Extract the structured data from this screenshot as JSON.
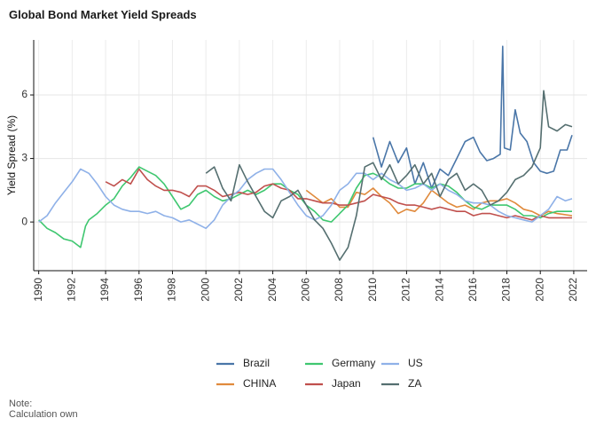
{
  "title": "Global Bond Market Yield Spreads",
  "caption": {
    "line1": "Note:",
    "line2": "Calculation own"
  },
  "chart_data": {
    "type": "line",
    "title": "Global Bond Market Yield Spreads",
    "xlabel": "",
    "ylabel": "Yield Spread (%)",
    "xlim": [
      1989.7,
      2022.8
    ],
    "ylim": [
      -2.3,
      8.6
    ],
    "xticks": [
      1990,
      1992,
      1994,
      1996,
      1998,
      2000,
      2002,
      2004,
      2006,
      2008,
      2010,
      2012,
      2014,
      2016,
      2018,
      2020,
      2022
    ],
    "yticks": [
      0,
      3,
      6
    ],
    "grid": true,
    "legend_position": "bottom",
    "series": [
      {
        "name": "Brazil",
        "color": "#4a76a8",
        "points": [
          [
            2010.0,
            4.0
          ],
          [
            2010.5,
            2.6
          ],
          [
            2011.0,
            3.8
          ],
          [
            2011.5,
            2.8
          ],
          [
            2012.0,
            3.5
          ],
          [
            2012.5,
            1.8
          ],
          [
            2013.0,
            2.8
          ],
          [
            2013.5,
            1.6
          ],
          [
            2014.0,
            2.5
          ],
          [
            2014.5,
            2.2
          ],
          [
            2015.0,
            3.0
          ],
          [
            2015.5,
            3.8
          ],
          [
            2016.0,
            4.0
          ],
          [
            2016.4,
            3.3
          ],
          [
            2016.8,
            2.9
          ],
          [
            2017.2,
            3.0
          ],
          [
            2017.6,
            3.2
          ],
          [
            2017.75,
            8.3
          ],
          [
            2017.85,
            3.5
          ],
          [
            2018.2,
            3.4
          ],
          [
            2018.5,
            5.3
          ],
          [
            2018.8,
            4.2
          ],
          [
            2019.2,
            3.8
          ],
          [
            2019.6,
            2.8
          ],
          [
            2020.0,
            2.4
          ],
          [
            2020.4,
            2.3
          ],
          [
            2020.8,
            2.4
          ],
          [
            2021.2,
            3.4
          ],
          [
            2021.6,
            3.4
          ],
          [
            2021.9,
            4.1
          ]
        ]
      },
      {
        "name": "CHINA",
        "color": "#e08a3c",
        "points": [
          [
            2006.0,
            1.5
          ],
          [
            2006.5,
            1.2
          ],
          [
            2007.0,
            0.9
          ],
          [
            2007.5,
            1.1
          ],
          [
            2008.0,
            0.7
          ],
          [
            2008.5,
            0.7
          ],
          [
            2009.0,
            1.4
          ],
          [
            2009.5,
            1.3
          ],
          [
            2010.0,
            1.6
          ],
          [
            2010.5,
            1.2
          ],
          [
            2011.0,
            0.9
          ],
          [
            2011.5,
            0.4
          ],
          [
            2012.0,
            0.6
          ],
          [
            2012.5,
            0.5
          ],
          [
            2013.0,
            0.9
          ],
          [
            2013.5,
            1.5
          ],
          [
            2014.0,
            1.2
          ],
          [
            2014.5,
            0.9
          ],
          [
            2015.0,
            0.7
          ],
          [
            2015.5,
            0.8
          ],
          [
            2016.0,
            0.6
          ],
          [
            2016.5,
            0.9
          ],
          [
            2017.0,
            1.0
          ],
          [
            2017.5,
            1.0
          ],
          [
            2018.0,
            1.1
          ],
          [
            2018.5,
            0.9
          ],
          [
            2019.0,
            0.6
          ],
          [
            2019.5,
            0.5
          ],
          [
            2020.0,
            0.3
          ],
          [
            2020.5,
            0.5
          ],
          [
            2021.0,
            0.4
          ],
          [
            2021.9,
            0.3
          ]
        ]
      },
      {
        "name": "Germany",
        "color": "#3fc770",
        "points": [
          [
            1990.0,
            0.1
          ],
          [
            1990.5,
            -0.3
          ],
          [
            1991.0,
            -0.5
          ],
          [
            1991.5,
            -0.8
          ],
          [
            1992.0,
            -0.9
          ],
          [
            1992.5,
            -1.2
          ],
          [
            1992.8,
            -0.2
          ],
          [
            1993.0,
            0.1
          ],
          [
            1993.5,
            0.4
          ],
          [
            1994.0,
            0.8
          ],
          [
            1994.5,
            1.1
          ],
          [
            1995.0,
            1.7
          ],
          [
            1995.5,
            2.1
          ],
          [
            1996.0,
            2.6
          ],
          [
            1996.5,
            2.4
          ],
          [
            1997.0,
            2.2
          ],
          [
            1997.5,
            1.8
          ],
          [
            1998.0,
            1.2
          ],
          [
            1998.5,
            0.6
          ],
          [
            1999.0,
            0.8
          ],
          [
            1999.5,
            1.3
          ],
          [
            2000.0,
            1.5
          ],
          [
            2000.5,
            1.2
          ],
          [
            2001.0,
            1.0
          ],
          [
            2001.5,
            1.1
          ],
          [
            2002.0,
            1.3
          ],
          [
            2002.5,
            1.5
          ],
          [
            2003.0,
            1.3
          ],
          [
            2003.5,
            1.5
          ],
          [
            2004.0,
            1.8
          ],
          [
            2004.5,
            1.8
          ],
          [
            2005.0,
            1.5
          ],
          [
            2005.5,
            1.3
          ],
          [
            2006.0,
            0.8
          ],
          [
            2006.5,
            0.5
          ],
          [
            2007.0,
            0.1
          ],
          [
            2007.5,
            0.0
          ],
          [
            2008.0,
            0.4
          ],
          [
            2008.5,
            0.8
          ],
          [
            2009.0,
            1.6
          ],
          [
            2009.5,
            2.2
          ],
          [
            2010.0,
            2.3
          ],
          [
            2010.5,
            2.1
          ],
          [
            2011.0,
            1.8
          ],
          [
            2011.5,
            1.6
          ],
          [
            2012.0,
            1.6
          ],
          [
            2012.5,
            1.8
          ],
          [
            2013.0,
            1.8
          ],
          [
            2013.5,
            1.6
          ],
          [
            2014.0,
            1.8
          ],
          [
            2014.5,
            1.7
          ],
          [
            2015.0,
            1.4
          ],
          [
            2015.5,
            1.0
          ],
          [
            2016.0,
            0.7
          ],
          [
            2016.5,
            0.6
          ],
          [
            2017.0,
            0.8
          ],
          [
            2017.5,
            0.8
          ],
          [
            2018.0,
            0.8
          ],
          [
            2018.5,
            0.6
          ],
          [
            2019.0,
            0.3
          ],
          [
            2019.5,
            0.3
          ],
          [
            2020.0,
            0.2
          ],
          [
            2020.5,
            0.4
          ],
          [
            2021.0,
            0.5
          ],
          [
            2021.9,
            0.5
          ]
        ]
      },
      {
        "name": "Japan",
        "color": "#c0504d",
        "points": [
          [
            1994.0,
            1.9
          ],
          [
            1994.5,
            1.7
          ],
          [
            1995.0,
            2.0
          ],
          [
            1995.5,
            1.8
          ],
          [
            1996.0,
            2.5
          ],
          [
            1996.5,
            2.0
          ],
          [
            1997.0,
            1.7
          ],
          [
            1997.5,
            1.5
          ],
          [
            1998.0,
            1.5
          ],
          [
            1998.5,
            1.4
          ],
          [
            1999.0,
            1.2
          ],
          [
            1999.5,
            1.7
          ],
          [
            2000.0,
            1.7
          ],
          [
            2000.5,
            1.5
          ],
          [
            2001.0,
            1.2
          ],
          [
            2001.5,
            1.3
          ],
          [
            2002.0,
            1.4
          ],
          [
            2002.5,
            1.3
          ],
          [
            2003.0,
            1.4
          ],
          [
            2003.5,
            1.7
          ],
          [
            2004.0,
            1.8
          ],
          [
            2004.5,
            1.6
          ],
          [
            2005.0,
            1.5
          ],
          [
            2005.5,
            1.1
          ],
          [
            2006.0,
            1.1
          ],
          [
            2006.5,
            1.0
          ],
          [
            2007.0,
            0.9
          ],
          [
            2007.5,
            0.9
          ],
          [
            2008.0,
            0.8
          ],
          [
            2008.5,
            0.8
          ],
          [
            2009.0,
            0.9
          ],
          [
            2009.5,
            1.0
          ],
          [
            2010.0,
            1.3
          ],
          [
            2010.5,
            1.2
          ],
          [
            2011.0,
            1.1
          ],
          [
            2011.5,
            0.9
          ],
          [
            2012.0,
            0.8
          ],
          [
            2012.5,
            0.8
          ],
          [
            2013.0,
            0.7
          ],
          [
            2013.5,
            0.6
          ],
          [
            2014.0,
            0.7
          ],
          [
            2014.5,
            0.6
          ],
          [
            2015.0,
            0.5
          ],
          [
            2015.5,
            0.5
          ],
          [
            2016.0,
            0.3
          ],
          [
            2016.5,
            0.4
          ],
          [
            2017.0,
            0.4
          ],
          [
            2017.5,
            0.3
          ],
          [
            2018.0,
            0.2
          ],
          [
            2018.5,
            0.3
          ],
          [
            2019.0,
            0.2
          ],
          [
            2019.5,
            0.1
          ],
          [
            2020.0,
            0.3
          ],
          [
            2020.5,
            0.2
          ],
          [
            2021.0,
            0.2
          ],
          [
            2021.9,
            0.2
          ]
        ]
      },
      {
        "name": "US",
        "color": "#8fb1e8",
        "points": [
          [
            1990.0,
            0.0
          ],
          [
            1990.5,
            0.3
          ],
          [
            1991.0,
            0.9
          ],
          [
            1991.5,
            1.4
          ],
          [
            1992.0,
            1.9
          ],
          [
            1992.5,
            2.5
          ],
          [
            1993.0,
            2.3
          ],
          [
            1993.5,
            1.8
          ],
          [
            1994.0,
            1.2
          ],
          [
            1994.5,
            0.8
          ],
          [
            1995.0,
            0.6
          ],
          [
            1995.5,
            0.5
          ],
          [
            1996.0,
            0.5
          ],
          [
            1996.5,
            0.4
          ],
          [
            1997.0,
            0.5
          ],
          [
            1997.5,
            0.3
          ],
          [
            1998.0,
            0.2
          ],
          [
            1998.5,
            0.0
          ],
          [
            1999.0,
            0.1
          ],
          [
            1999.5,
            -0.1
          ],
          [
            2000.0,
            -0.3
          ],
          [
            2000.5,
            0.1
          ],
          [
            2001.0,
            0.8
          ],
          [
            2001.5,
            1.2
          ],
          [
            2002.0,
            1.5
          ],
          [
            2002.5,
            2.0
          ],
          [
            2003.0,
            2.3
          ],
          [
            2003.5,
            2.5
          ],
          [
            2004.0,
            2.5
          ],
          [
            2004.5,
            2.0
          ],
          [
            2005.0,
            1.4
          ],
          [
            2005.5,
            0.8
          ],
          [
            2006.0,
            0.3
          ],
          [
            2006.5,
            0.1
          ],
          [
            2007.0,
            0.3
          ],
          [
            2007.5,
            0.8
          ],
          [
            2008.0,
            1.5
          ],
          [
            2008.5,
            1.8
          ],
          [
            2009.0,
            2.3
          ],
          [
            2009.5,
            2.3
          ],
          [
            2010.0,
            2.0
          ],
          [
            2010.5,
            2.3
          ],
          [
            2011.0,
            2.0
          ],
          [
            2011.5,
            1.8
          ],
          [
            2012.0,
            1.5
          ],
          [
            2012.5,
            1.6
          ],
          [
            2013.0,
            1.8
          ],
          [
            2013.5,
            1.5
          ],
          [
            2014.0,
            1.8
          ],
          [
            2014.5,
            1.5
          ],
          [
            2015.0,
            1.3
          ],
          [
            2015.5,
            1.0
          ],
          [
            2016.0,
            0.9
          ],
          [
            2016.5,
            0.9
          ],
          [
            2017.0,
            0.8
          ],
          [
            2017.5,
            0.5
          ],
          [
            2018.0,
            0.3
          ],
          [
            2018.5,
            0.2
          ],
          [
            2019.0,
            0.1
          ],
          [
            2019.5,
            0.0
          ],
          [
            2020.0,
            0.3
          ],
          [
            2020.5,
            0.6
          ],
          [
            2021.0,
            1.2
          ],
          [
            2021.5,
            1.0
          ],
          [
            2021.9,
            1.1
          ]
        ]
      },
      {
        "name": "ZA",
        "color": "#556f70",
        "points": [
          [
            2000.0,
            2.3
          ],
          [
            2000.5,
            2.6
          ],
          [
            2001.0,
            1.6
          ],
          [
            2001.5,
            1.0
          ],
          [
            2002.0,
            2.7
          ],
          [
            2002.5,
            1.9
          ],
          [
            2003.0,
            1.2
          ],
          [
            2003.5,
            0.5
          ],
          [
            2004.0,
            0.2
          ],
          [
            2004.5,
            1.0
          ],
          [
            2005.0,
            1.2
          ],
          [
            2005.5,
            1.5
          ],
          [
            2006.0,
            0.8
          ],
          [
            2006.5,
            0.1
          ],
          [
            2007.0,
            -0.3
          ],
          [
            2007.5,
            -1.0
          ],
          [
            2008.0,
            -1.8
          ],
          [
            2008.5,
            -1.2
          ],
          [
            2009.0,
            0.3
          ],
          [
            2009.5,
            2.6
          ],
          [
            2010.0,
            2.8
          ],
          [
            2010.5,
            2.0
          ],
          [
            2011.0,
            2.7
          ],
          [
            2011.5,
            1.8
          ],
          [
            2012.0,
            2.2
          ],
          [
            2012.5,
            2.7
          ],
          [
            2013.0,
            1.8
          ],
          [
            2013.5,
            2.3
          ],
          [
            2014.0,
            1.2
          ],
          [
            2014.5,
            2.0
          ],
          [
            2015.0,
            2.3
          ],
          [
            2015.5,
            1.5
          ],
          [
            2016.0,
            1.8
          ],
          [
            2016.5,
            1.5
          ],
          [
            2017.0,
            0.8
          ],
          [
            2017.5,
            1.0
          ],
          [
            2018.0,
            1.4
          ],
          [
            2018.5,
            2.0
          ],
          [
            2019.0,
            2.2
          ],
          [
            2019.5,
            2.6
          ],
          [
            2020.0,
            3.5
          ],
          [
            2020.2,
            6.2
          ],
          [
            2020.5,
            4.5
          ],
          [
            2021.0,
            4.3
          ],
          [
            2021.5,
            4.6
          ],
          [
            2021.9,
            4.5
          ]
        ]
      }
    ]
  }
}
